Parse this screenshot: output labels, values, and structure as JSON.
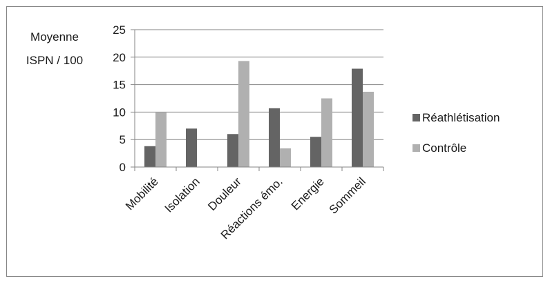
{
  "chart_data": {
    "type": "bar",
    "title": "",
    "xlabel": "",
    "ylabel_lines": [
      "Moyenne",
      "ISPN / 100"
    ],
    "categories": [
      "Mobilité",
      "Isolation",
      "Douleur",
      "Réactions émo.",
      "Energie",
      "Sommeil"
    ],
    "series": [
      {
        "name": "Réathlétisation",
        "color": "#646464",
        "values": [
          3.8,
          7.0,
          6.0,
          10.7,
          5.5,
          17.9
        ]
      },
      {
        "name": "Contrôle",
        "color": "#b0b0b0",
        "values": [
          10.0,
          0,
          19.3,
          3.4,
          12.5,
          13.7
        ]
      }
    ],
    "ylim": [
      0,
      25
    ],
    "yticks": [
      0,
      5,
      10,
      15,
      20,
      25
    ],
    "grid": true,
    "legend_position": "right"
  }
}
